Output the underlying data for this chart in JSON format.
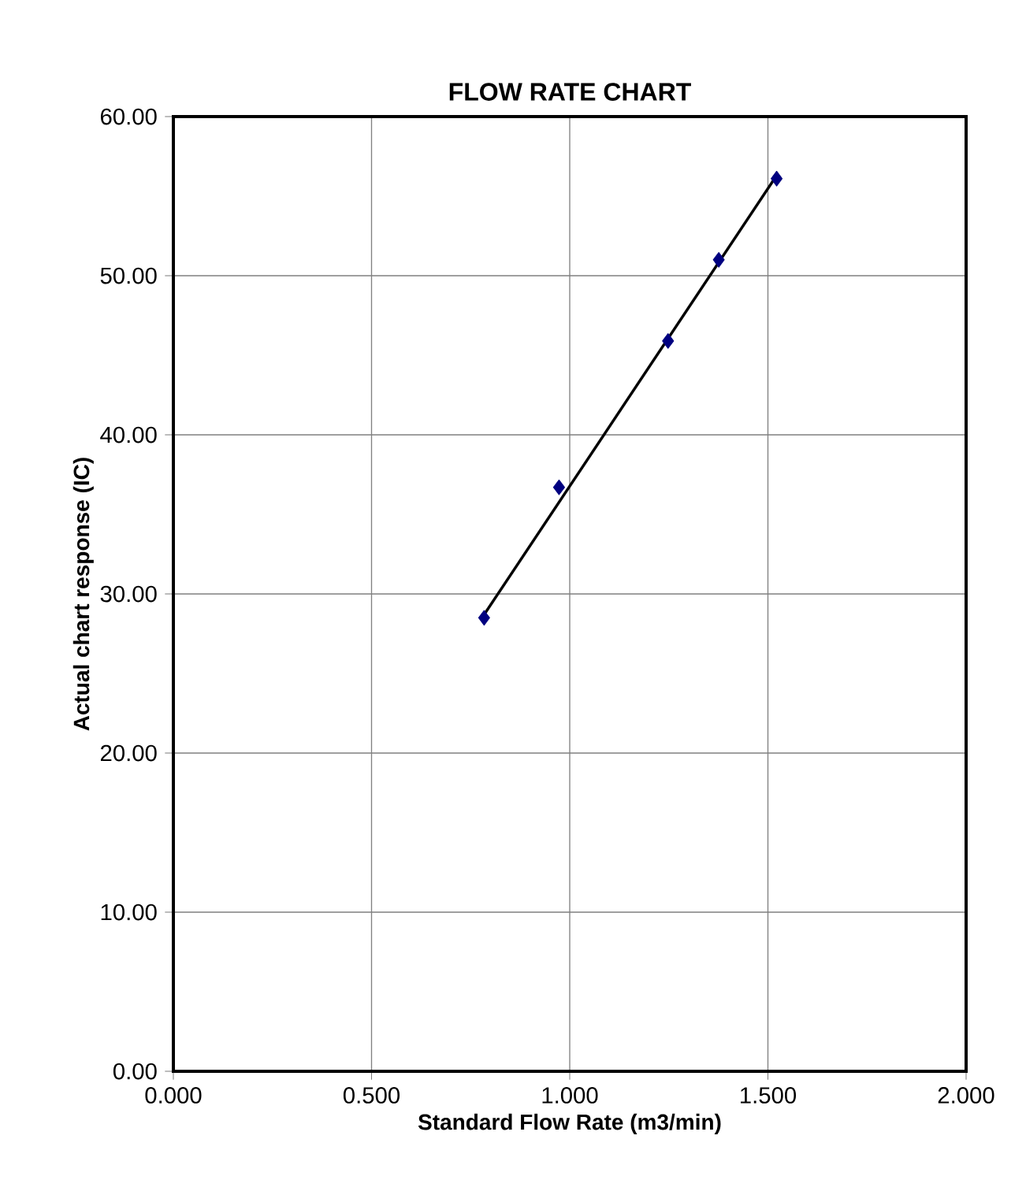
{
  "chart_data": {
    "type": "scatter",
    "title": "FLOW RATE CHART",
    "xlabel": "Standard Flow Rate (m3/min)",
    "ylabel": "Actual chart response (IC)",
    "xlim": [
      0,
      2
    ],
    "ylim": [
      0,
      60
    ],
    "xticks": [
      {
        "value": 0,
        "label": "0.000"
      },
      {
        "value": 0.5,
        "label": "0.500"
      },
      {
        "value": 1,
        "label": "1.000"
      },
      {
        "value": 1.5,
        "label": "1.500"
      },
      {
        "value": 2,
        "label": "2.000"
      }
    ],
    "yticks": [
      {
        "value": 0,
        "label": "0.00"
      },
      {
        "value": 10,
        "label": "10.00"
      },
      {
        "value": 20,
        "label": "20.00"
      },
      {
        "value": 30,
        "label": "30.00"
      },
      {
        "value": 40,
        "label": "40.00"
      },
      {
        "value": 50,
        "label": "50.00"
      },
      {
        "value": 60,
        "label": "60.00"
      }
    ],
    "grid": true,
    "marker": "diamond",
    "series": [
      {
        "type": "line",
        "color": "#000000",
        "marker": "none",
        "x": [
          0.784,
          1.522
        ],
        "values": [
          28.7,
          56.3
        ]
      },
      {
        "color": "#000080",
        "x": [
          0.784,
          0.973,
          1.248,
          1.376,
          1.522
        ],
        "values": [
          28.5,
          36.7,
          45.9,
          51.0,
          56.1
        ]
      }
    ]
  }
}
